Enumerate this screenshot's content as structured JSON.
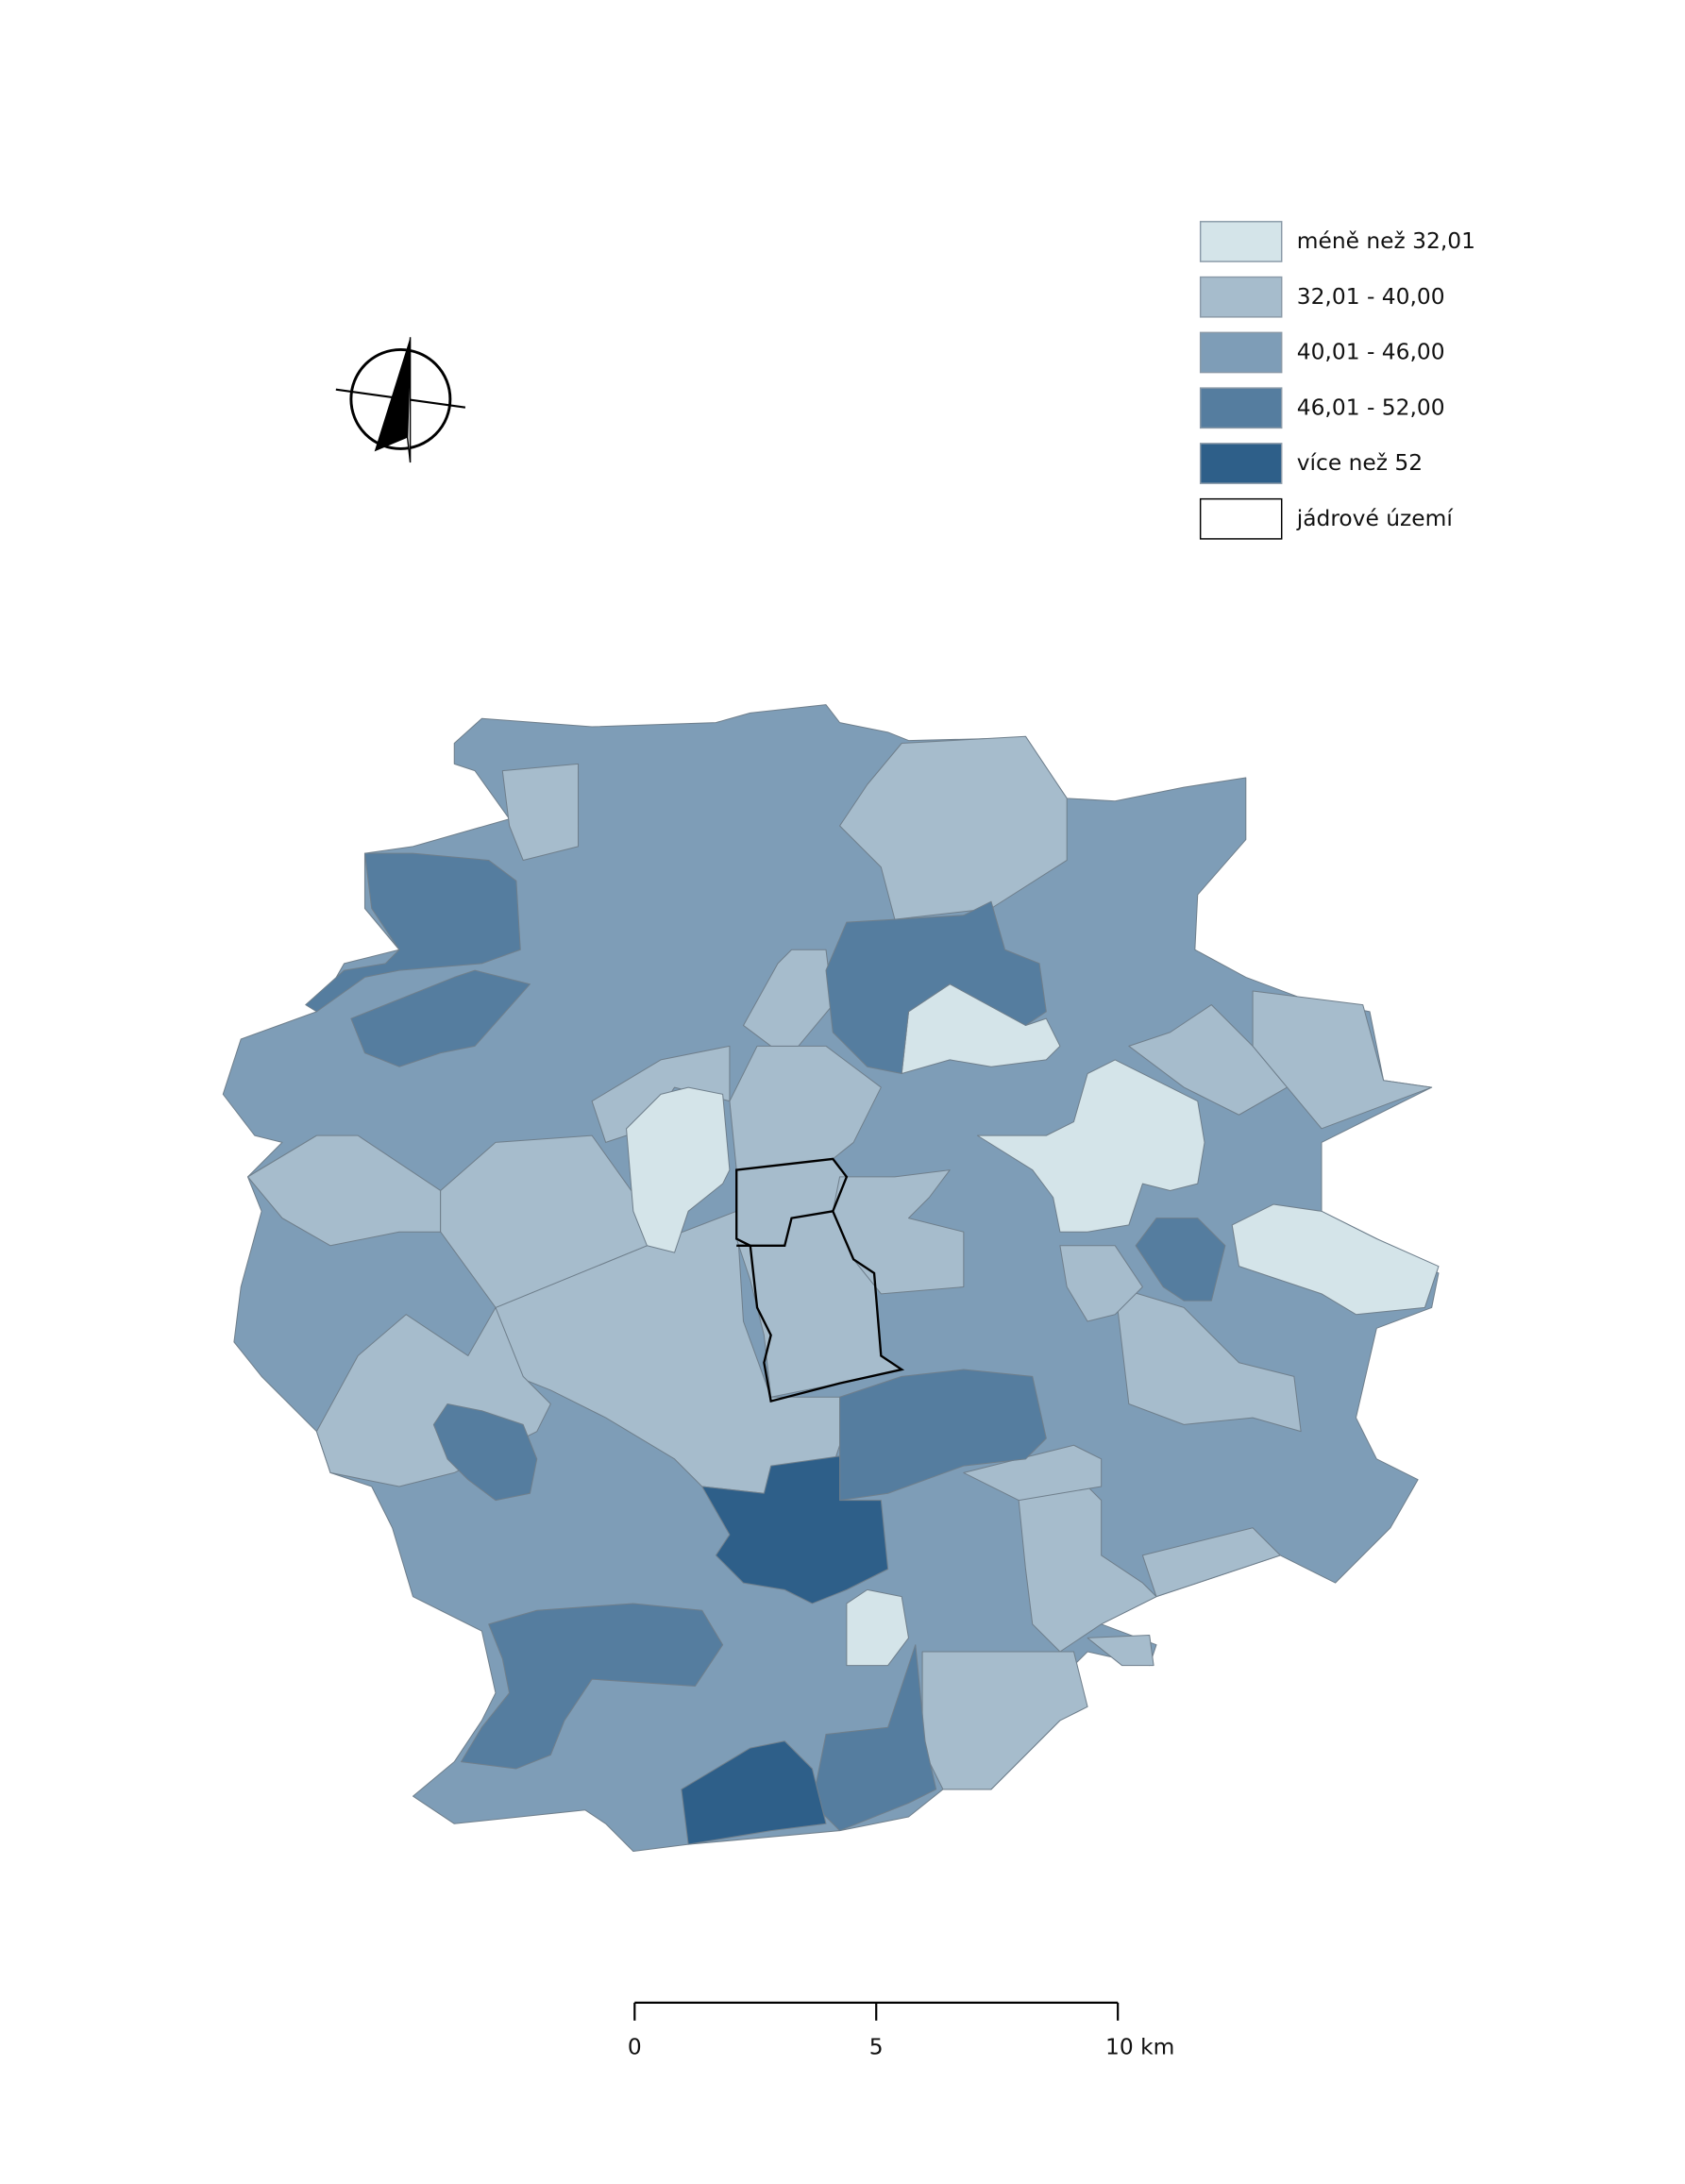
{
  "legend": {
    "items": [
      {
        "label": "méně než 32,01",
        "color": "#d4e4e9"
      },
      {
        "label": "32,01 - 40,00",
        "color": "#a6bccc"
      },
      {
        "label": "40,01 - 46,00",
        "color": "#7e9db7"
      },
      {
        "label": "46,01 - 52,00",
        "color": "#557d9f"
      },
      {
        "label": "více než 52",
        "color": "#2e5f89"
      },
      {
        "label": "jádrové území",
        "color": "#ffffff"
      }
    ]
  },
  "scale_bar": {
    "ticks": [
      0,
      5,
      {
        "value": 10,
        "label": "10 km"
      }
    ],
    "range": [
      0,
      10
    ]
  }
}
